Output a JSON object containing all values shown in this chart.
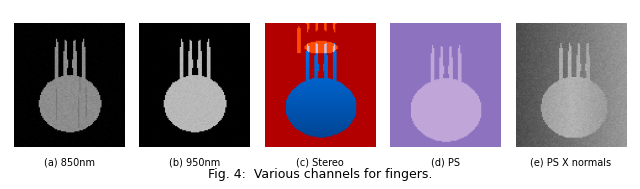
{
  "figsize": [
    6.4,
    1.89
  ],
  "dpi": 100,
  "fig_caption": "Fig. 4:  Various channels for fingers.",
  "fig_caption_fontsize": 9,
  "subfig_labels_plain": [
    "(a) 850nm",
    "(b) 950nm",
    "(c) Stereo",
    "(d) PS",
    "(e) PS X normals"
  ],
  "label_fontsize": 7,
  "background_color": "#ffffff",
  "n_cols": 5
}
